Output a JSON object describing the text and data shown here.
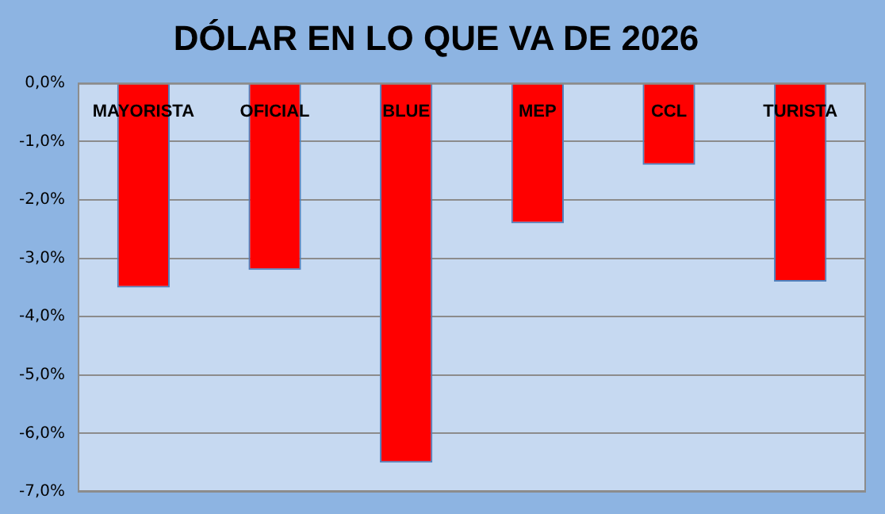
{
  "chart_data": {
    "type": "bar",
    "title": "DÓLAR EN LO QUE VA DE 2026",
    "categories": [
      "MAYORISTA",
      "OFICIAL",
      "BLUE",
      "MEP",
      "CCL",
      "TURISTA"
    ],
    "values": [
      -3.5,
      -3.2,
      -6.5,
      -2.4,
      -1.4,
      -3.4
    ],
    "color": "#ff0000",
    "ylim": [
      -7,
      0
    ],
    "yticks": [
      {
        "value": 0,
        "label": "0,0%"
      },
      {
        "value": -1,
        "label": "-1,0%"
      },
      {
        "value": -2,
        "label": "-2,0%"
      },
      {
        "value": -3,
        "label": "-3,0%"
      },
      {
        "value": -4,
        "label": "-4,0%"
      },
      {
        "value": -5,
        "label": "-5,0%"
      },
      {
        "value": -6,
        "label": "-6,0%"
      },
      {
        "value": -7,
        "label": "-7,0%"
      }
    ],
    "grid": "y",
    "legend": false
  }
}
